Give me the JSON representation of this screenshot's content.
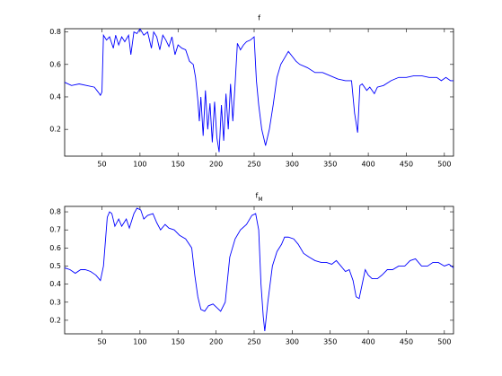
{
  "chart_data": [
    {
      "type": "line",
      "title": "f",
      "color": "#0000ff",
      "x": [
        1,
        10,
        20,
        30,
        40,
        45,
        48,
        50,
        52,
        56,
        60,
        65,
        68,
        72,
        76,
        80,
        85,
        88,
        92,
        96,
        100,
        105,
        110,
        115,
        118,
        122,
        126,
        130,
        134,
        138,
        142,
        146,
        150,
        155,
        160,
        165,
        170,
        173,
        176,
        178,
        180,
        183,
        186,
        189,
        192,
        195,
        198,
        201,
        204,
        207,
        210,
        213,
        216,
        219,
        222,
        225,
        228,
        232,
        236,
        240,
        245,
        250,
        253,
        256,
        260,
        265,
        270,
        275,
        280,
        285,
        290,
        295,
        300,
        305,
        310,
        320,
        330,
        340,
        350,
        360,
        370,
        378,
        382,
        386,
        389,
        392,
        398,
        402,
        408,
        412,
        420,
        430,
        440,
        450,
        460,
        470,
        480,
        490,
        496,
        502,
        508,
        512
      ],
      "values": [
        0.49,
        0.47,
        0.48,
        0.47,
        0.46,
        0.43,
        0.41,
        0.43,
        0.78,
        0.75,
        0.77,
        0.7,
        0.78,
        0.72,
        0.77,
        0.74,
        0.78,
        0.66,
        0.8,
        0.79,
        0.82,
        0.78,
        0.8,
        0.7,
        0.8,
        0.77,
        0.69,
        0.78,
        0.75,
        0.71,
        0.77,
        0.66,
        0.72,
        0.7,
        0.69,
        0.62,
        0.6,
        0.52,
        0.38,
        0.25,
        0.4,
        0.16,
        0.44,
        0.2,
        0.36,
        0.12,
        0.37,
        0.15,
        0.06,
        0.35,
        0.13,
        0.42,
        0.2,
        0.48,
        0.25,
        0.48,
        0.73,
        0.69,
        0.72,
        0.74,
        0.75,
        0.77,
        0.5,
        0.35,
        0.2,
        0.1,
        0.2,
        0.35,
        0.52,
        0.6,
        0.64,
        0.68,
        0.65,
        0.62,
        0.6,
        0.58,
        0.55,
        0.55,
        0.53,
        0.51,
        0.5,
        0.5,
        0.3,
        0.18,
        0.47,
        0.48,
        0.44,
        0.46,
        0.42,
        0.46,
        0.47,
        0.5,
        0.52,
        0.52,
        0.53,
        0.53,
        0.52,
        0.52,
        0.5,
        0.52,
        0.5,
        0.5
      ],
      "xlim": [
        1,
        512
      ],
      "ylim": [
        0.035,
        0.82
      ],
      "xticks": [
        50,
        100,
        150,
        200,
        250,
        300,
        350,
        400,
        450,
        500
      ],
      "yticks": [
        0.2,
        0.4,
        0.6,
        0.8
      ]
    },
    {
      "type": "line",
      "title": "f",
      "title_subscript": "M",
      "color": "#0000ff",
      "x": [
        1,
        8,
        15,
        22,
        28,
        35,
        42,
        48,
        52,
        57,
        60,
        63,
        67,
        72,
        76,
        82,
        86,
        92,
        96,
        101,
        105,
        110,
        117,
        122,
        127,
        133,
        138,
        145,
        152,
        160,
        168,
        172,
        176,
        180,
        185,
        190,
        196,
        201,
        206,
        212,
        218,
        225,
        232,
        240,
        247,
        252,
        256,
        259,
        262,
        264,
        268,
        274,
        280,
        286,
        290,
        295,
        302,
        308,
        315,
        322,
        330,
        338,
        345,
        352,
        358,
        364,
        370,
        375,
        380,
        384,
        388,
        392,
        396,
        400,
        405,
        412,
        418,
        425,
        432,
        440,
        448,
        455,
        462,
        470,
        478,
        485,
        492,
        500,
        506,
        512
      ],
      "values": [
        0.49,
        0.48,
        0.46,
        0.48,
        0.48,
        0.47,
        0.45,
        0.42,
        0.5,
        0.77,
        0.8,
        0.79,
        0.72,
        0.76,
        0.72,
        0.76,
        0.71,
        0.79,
        0.82,
        0.81,
        0.76,
        0.78,
        0.79,
        0.74,
        0.7,
        0.73,
        0.71,
        0.7,
        0.67,
        0.65,
        0.6,
        0.45,
        0.33,
        0.26,
        0.25,
        0.28,
        0.29,
        0.27,
        0.25,
        0.3,
        0.55,
        0.65,
        0.7,
        0.73,
        0.78,
        0.79,
        0.7,
        0.4,
        0.22,
        0.14,
        0.3,
        0.5,
        0.58,
        0.62,
        0.66,
        0.66,
        0.65,
        0.62,
        0.57,
        0.55,
        0.53,
        0.52,
        0.52,
        0.51,
        0.53,
        0.5,
        0.47,
        0.48,
        0.42,
        0.33,
        0.32,
        0.4,
        0.48,
        0.45,
        0.43,
        0.43,
        0.45,
        0.48,
        0.48,
        0.5,
        0.5,
        0.53,
        0.54,
        0.5,
        0.5,
        0.52,
        0.52,
        0.5,
        0.51,
        0.49
      ],
      "xlim": [
        1,
        512
      ],
      "ylim": [
        0.125,
        0.83
      ],
      "xticks": [
        50,
        100,
        150,
        200,
        250,
        300,
        350,
        400,
        450,
        500
      ],
      "yticks": [
        0.2,
        0.3,
        0.4,
        0.5,
        0.6,
        0.7,
        0.8
      ]
    }
  ]
}
